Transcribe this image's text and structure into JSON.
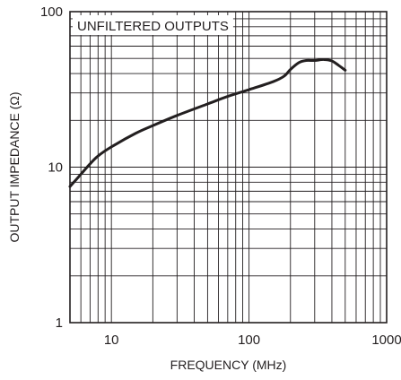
{
  "chart_data": {
    "type": "line",
    "title": "",
    "annotation": "UNFILTERED OUTPUTS",
    "xlabel": "FREQUENCY (MHz)",
    "ylabel": "OUTPUT IMPEDANCE (Ω)",
    "x_scale": "log",
    "y_scale": "log",
    "xlim": [
      5,
      1000
    ],
    "ylim": [
      1,
      100
    ],
    "grid": true,
    "x_ticks": [
      "10",
      "100",
      "1000"
    ],
    "y_ticks": [
      "1",
      "10",
      "100"
    ],
    "series": [
      {
        "x": [
          5,
          6,
          7,
          8,
          10,
          15,
          20,
          30,
          50,
          70,
          100,
          150,
          180,
          200,
          230,
          260,
          300,
          350,
          400,
          450,
          500
        ],
        "y": [
          7.5,
          9,
          10.5,
          11.8,
          13.5,
          16.5,
          18.5,
          21.5,
          25.5,
          28.5,
          31.5,
          35.5,
          38.5,
          42.5,
          47,
          48.5,
          48.5,
          49.2,
          48.2,
          45,
          42
        ]
      }
    ]
  }
}
